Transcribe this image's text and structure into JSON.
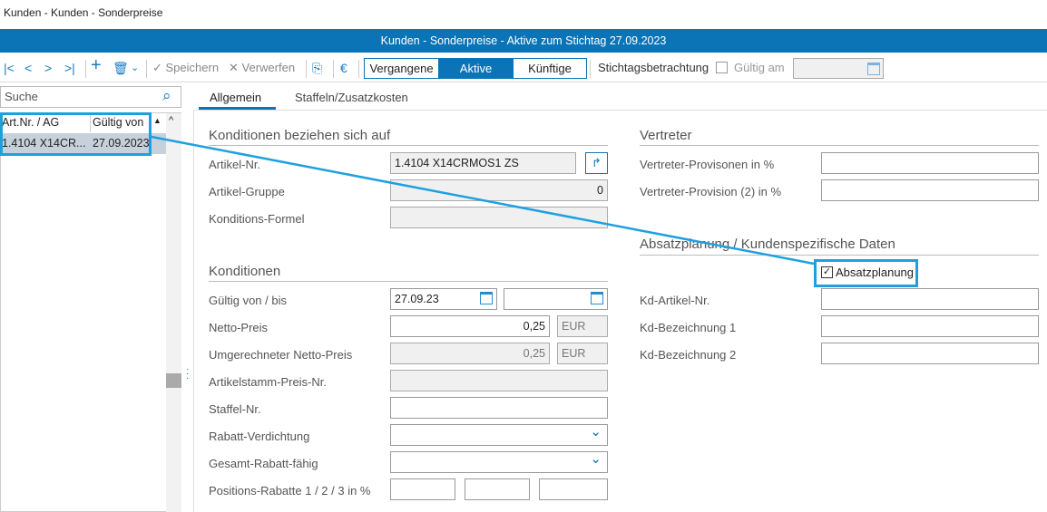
{
  "window": {
    "title": "Kunden - Kunden - Sonderpreise",
    "header": "Kunden - Sonderpreise - Aktive zum Stichtag 27.09.2023"
  },
  "toolbar": {
    "first": "|<",
    "prev": "<",
    "next": ">",
    "last": ">|",
    "add": "+",
    "delete_icon": "trash-icon",
    "save": "Speichern",
    "discard": "Verwerfen",
    "periods": [
      "Vergangene",
      "Aktive",
      "Künftige"
    ],
    "active_period": "Aktive",
    "stichtag_label": "Stichtagsbetrachtung",
    "stichtag_checked": false,
    "gueltig_am_label": "Gültig am",
    "gueltig_am_value": ""
  },
  "search": {
    "placeholder": "Suche"
  },
  "grid": {
    "columns": [
      "Art.Nr. / AG",
      "Gültig von"
    ],
    "rows": [
      [
        "1.4104 X14CR...",
        "27.09.2023"
      ]
    ]
  },
  "tabs": [
    {
      "label": "Allgemein",
      "active": true
    },
    {
      "label": "Staffeln/Zusatzkosten",
      "active": false
    }
  ],
  "bezug": {
    "title": "Konditionen beziehen sich auf",
    "artikel_nr_label": "Artikel-Nr.",
    "artikel_nr": "1.4104 X14CRMOS1 ZS",
    "artikel_gruppe_label": "Artikel-Gruppe",
    "artikel_gruppe": "0",
    "formel_label": "Konditions-Formel",
    "formel": ""
  },
  "konditionen": {
    "title": "Konditionen",
    "gueltig_label": "Gültig von / bis",
    "gueltig_von": "27.09.23",
    "gueltig_bis": "",
    "netto_label": "Netto-Preis",
    "netto": "0,25",
    "currency": "EUR",
    "umg_label": "Umgerechneter Netto-Preis",
    "umg": "0,25",
    "umg_currency": "EUR",
    "stamm_label": "Artikelstamm-Preis-Nr.",
    "staffel_label": "Staffel-Nr.",
    "rabatt_label": "Rabatt-Verdichtung",
    "gesamt_label": "Gesamt-Rabatt-fähig",
    "pos_label": "Positions-Rabatte 1 / 2 / 3 in %"
  },
  "vertreter": {
    "title": "Vertreter",
    "prov_label": "Vertreter-Provisonen in %",
    "prov2_label": "Vertreter-Provision (2) in %"
  },
  "absatz": {
    "title": "Absatzplanung / Kundenspezifische Daten",
    "checkbox_label": "Absatzplanung",
    "checked": true,
    "kd_artikel_label": "Kd-Artikel-Nr.",
    "kd_bez1_label": "Kd-Bezeichnung 1",
    "kd_bez2_label": "Kd-Bezeichnung 2"
  },
  "colors": {
    "accent": "#0a74b6",
    "highlight": "#1ea0e0"
  }
}
